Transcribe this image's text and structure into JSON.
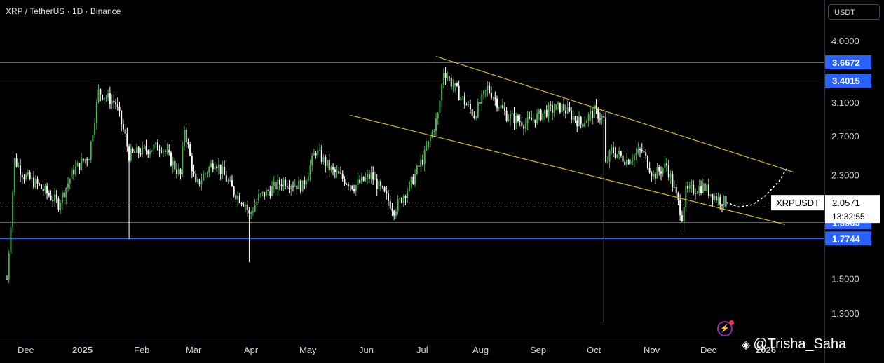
{
  "header": {
    "title": "XRP / TetherUS · 1D · Binance",
    "currency_button": "USDT"
  },
  "watermark": {
    "text": "@Trisha_Saha",
    "icon": "tradingview-diamond-icon"
  },
  "colors": {
    "up": "#4caf50",
    "down": "#ffffff",
    "level_line": "#2962ff",
    "trend_line": "#d4b82a",
    "badge_bg": "#2962ff",
    "price_line": "#f2553a",
    "alert": "#9c27b0"
  },
  "chart_data": {
    "type": "line",
    "title": "XRP / TetherUS · 1D · Binance",
    "xlabel": "",
    "ylabel": "",
    "y_scale": "log",
    "ylim": [
      1.13,
      4.8
    ],
    "x_ticks": [
      "Dec",
      "2025",
      "Feb",
      "Mar",
      "Apr",
      "May",
      "Jun",
      "Jul",
      "Aug",
      "Sep",
      "Oct",
      "Nov",
      "Dec",
      "2026"
    ],
    "y_ticks": [
      "4.0000",
      "3.1000",
      "2.7000",
      "2.3000",
      "1.5000",
      "1.3000"
    ],
    "price_series": {
      "name": "XRPUSDT",
      "x": [
        "2024-12-01",
        "2024-12-03",
        "2024-12-05",
        "2024-12-10",
        "2024-12-18",
        "2024-12-28",
        "2025-01-05",
        "2025-01-13",
        "2025-01-18",
        "2025-01-27",
        "2025-02-01",
        "2025-02-03",
        "2025-02-10",
        "2025-02-20",
        "2025-03-02",
        "2025-03-04",
        "2025-03-10",
        "2025-03-20",
        "2025-03-30",
        "2025-04-05",
        "2025-04-07",
        "2025-04-12",
        "2025-04-25",
        "2025-05-05",
        "2025-05-12",
        "2025-05-20",
        "2025-06-01",
        "2025-06-10",
        "2025-06-20",
        "2025-06-22",
        "2025-06-30",
        "2025-07-08",
        "2025-07-15",
        "2025-07-18",
        "2025-07-25",
        "2025-08-03",
        "2025-08-10",
        "2025-08-20",
        "2025-08-30",
        "2025-09-10",
        "2025-09-18",
        "2025-09-28",
        "2025-10-05",
        "2025-10-10",
        "2025-10-11",
        "2025-10-14",
        "2025-10-22",
        "2025-10-30",
        "2025-11-05",
        "2025-11-12",
        "2025-11-20",
        "2025-11-22",
        "2025-12-01",
        "2025-12-08",
        "2025-12-13"
      ],
      "values": [
        1.5,
        1.9,
        2.45,
        2.3,
        2.2,
        2.05,
        2.35,
        2.5,
        3.25,
        3.1,
        2.7,
        2.5,
        2.55,
        2.6,
        2.3,
        2.8,
        2.2,
        2.45,
        2.15,
        2.05,
        1.95,
        2.1,
        2.25,
        2.2,
        2.55,
        2.35,
        2.2,
        2.3,
        2.05,
        2.0,
        2.2,
        2.5,
        2.95,
        3.55,
        3.25,
        2.95,
        3.3,
        2.95,
        2.85,
        3.0,
        3.05,
        2.85,
        3.0,
        2.9,
        2.4,
        2.55,
        2.45,
        2.55,
        2.3,
        2.4,
        1.95,
        2.15,
        2.2,
        2.1,
        2.0571
      ]
    },
    "last_price": "2.0571",
    "symbol_label": "XRPUSDT",
    "countdown": "13:32:55",
    "horizontal_levels": [
      "3.6672",
      "3.4015",
      "1.8965",
      "1.7744"
    ],
    "channel": {
      "upper": [
        {
          "x": "2025-07-14",
          "y": 3.76
        },
        {
          "x": "2026-01-18",
          "y": 2.33
        }
      ],
      "lower": [
        {
          "x": "2025-05-30",
          "y": 2.95
        },
        {
          "x": "2026-01-13",
          "y": 1.88
        }
      ]
    },
    "projection": {
      "x": [
        "2025-12-13",
        "2025-12-20",
        "2025-12-27",
        "2026-01-03",
        "2026-01-10",
        "2026-01-14"
      ],
      "values": [
        2.06,
        2.02,
        2.04,
        2.12,
        2.25,
        2.37
      ]
    }
  }
}
